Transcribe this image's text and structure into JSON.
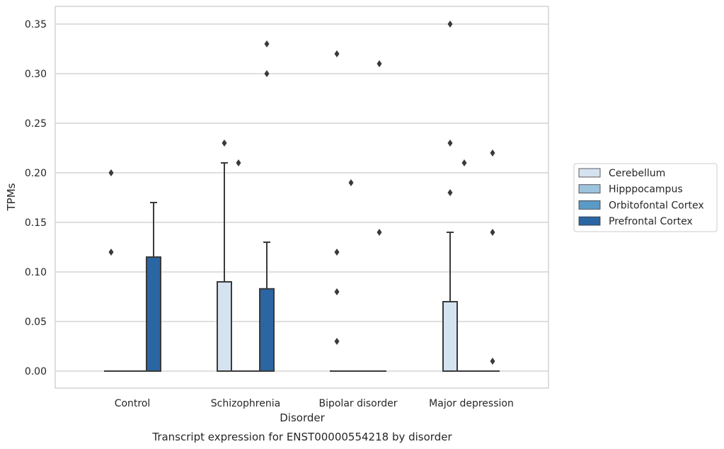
{
  "chart_data": {
    "type": "box",
    "caption": "Transcript expression for ENST00000554218 by disorder",
    "xlabel": "Disorder",
    "ylabel": "TPMs",
    "ylim": [
      -0.017,
      0.368
    ],
    "yticks": [
      0.0,
      0.05,
      0.1,
      0.15,
      0.2,
      0.25,
      0.3,
      0.35
    ],
    "ytick_labels": [
      "0.00",
      "0.05",
      "0.10",
      "0.15",
      "0.20",
      "0.25",
      "0.30",
      "0.35"
    ],
    "grid": "horizontal",
    "legend_position": "right",
    "categories": [
      "Control",
      "Schizophrenia",
      "Bipolar disorder",
      "Major depression"
    ],
    "series": [
      {
        "name": "Cerebellum",
        "color": "#d5e2f0",
        "boxes": [
          {
            "q1": 0,
            "median": 0,
            "q3": 0,
            "whisker_low": 0,
            "whisker_high": 0,
            "outliers": [
              0.2,
              0.12
            ]
          },
          {
            "q1": 0,
            "median": 0,
            "q3": 0.09,
            "whisker_low": 0,
            "whisker_high": 0.21,
            "outliers": [
              0.23
            ]
          },
          {
            "q1": 0,
            "median": 0,
            "q3": 0,
            "whisker_low": 0,
            "whisker_high": 0,
            "outliers": [
              0.32,
              0.12,
              0.08,
              0.03
            ]
          },
          {
            "q1": 0,
            "median": 0,
            "q3": 0.07,
            "whisker_low": 0,
            "whisker_high": 0.14,
            "outliers": [
              0.35,
              0.23,
              0.18
            ]
          }
        ]
      },
      {
        "name": "Hipppocampus",
        "color": "#9dc3dd",
        "boxes": [
          {
            "q1": 0,
            "median": 0,
            "q3": 0,
            "whisker_low": 0,
            "whisker_high": 0,
            "outliers": []
          },
          {
            "q1": 0,
            "median": 0,
            "q3": 0,
            "whisker_low": 0,
            "whisker_high": 0,
            "outliers": [
              0.21
            ]
          },
          {
            "q1": 0,
            "median": 0,
            "q3": 0,
            "whisker_low": 0,
            "whisker_high": 0,
            "outliers": [
              0.19
            ]
          },
          {
            "q1": 0,
            "median": 0,
            "q3": 0,
            "whisker_low": 0,
            "whisker_high": 0,
            "outliers": [
              0.21
            ]
          }
        ]
      },
      {
        "name": "Orbitofontal Cortex",
        "color": "#5a9ac7",
        "boxes": [
          {
            "q1": 0,
            "median": 0,
            "q3": 0,
            "whisker_low": 0,
            "whisker_high": 0,
            "outliers": []
          },
          {
            "q1": 0,
            "median": 0,
            "q3": 0,
            "whisker_low": 0,
            "whisker_high": 0,
            "outliers": []
          },
          {
            "q1": 0,
            "median": 0,
            "q3": 0,
            "whisker_low": 0,
            "whisker_high": 0,
            "outliers": []
          },
          {
            "q1": 0,
            "median": 0,
            "q3": 0,
            "whisker_low": 0,
            "whisker_high": 0,
            "outliers": []
          }
        ]
      },
      {
        "name": "Prefrontal Cortex",
        "color": "#2b65a2",
        "boxes": [
          {
            "q1": 0,
            "median": 0,
            "q3": 0.115,
            "whisker_low": 0,
            "whisker_high": 0.17,
            "outliers": []
          },
          {
            "q1": 0,
            "median": 0,
            "q3": 0.083,
            "whisker_low": 0,
            "whisker_high": 0.13,
            "outliers": [
              0.33,
              0.3
            ]
          },
          {
            "q1": 0,
            "median": 0,
            "q3": 0,
            "whisker_low": 0,
            "whisker_high": 0,
            "outliers": [
              0.31,
              0.14
            ]
          },
          {
            "q1": 0,
            "median": 0,
            "q3": 0,
            "whisker_low": 0,
            "whisker_high": 0,
            "outliers": [
              0.22,
              0.14,
              0.01
            ]
          }
        ]
      }
    ],
    "colors": {
      "grid": "#cccccc",
      "frame": "#cccccc",
      "edge": "#3a3a3a",
      "text": "#262626"
    }
  }
}
